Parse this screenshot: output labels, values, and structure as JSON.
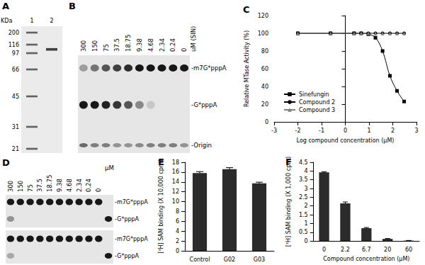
{
  "chart_data": [
    {
      "type": "line",
      "title": "C",
      "x_label": "Log compound concentration (μM)",
      "y_label": "Relative MTase Activity (%)",
      "x": [
        -2,
        -0.62,
        0.37,
        0.67,
        0.97,
        1.27,
        1.57,
        1.88,
        2.18,
        2.48
      ],
      "series": [
        {
          "name": "Sinefungin",
          "color": "#000000",
          "marker": "square",
          "line_style": "solid",
          "values": [
            100,
            100,
            100,
            100,
            99,
            95,
            80,
            52,
            35,
            23
          ]
        },
        {
          "name": "Compound 2",
          "color": "#000000",
          "marker": "circle",
          "line_style": "solid",
          "values": [
            100,
            100,
            100,
            100,
            100,
            100,
            100,
            100,
            100,
            100
          ]
        },
        {
          "name": "Compound 3",
          "color": "#7f7f7f",
          "marker": "triangle",
          "line_style": "solid",
          "values": [
            100,
            100,
            100,
            100,
            100,
            100,
            100,
            100,
            100,
            100
          ]
        }
      ],
      "xlim": [
        -3,
        3
      ],
      "xticks": [
        -3,
        -2,
        -1,
        0,
        1,
        2,
        3
      ],
      "ylim": [
        0,
        120
      ],
      "yticks": [
        0,
        20,
        40,
        60,
        80,
        100,
        120
      ],
      "grid": false,
      "legend": "lower left"
    },
    {
      "type": "bar",
      "title": "E",
      "y_label": "[³H] SAM binding (X 10,000 cpm)",
      "categories": [
        "Control",
        "G02",
        "G03"
      ],
      "values": [
        15.8,
        16.6,
        13.7
      ],
      "errors": [
        0.3,
        0.3,
        0.25
      ],
      "color": "#2b2b2b",
      "ylim": [
        0,
        18
      ],
      "yticks": [
        0,
        2,
        4,
        6,
        8,
        10,
        12,
        14,
        16,
        18
      ],
      "grid": false
    },
    {
      "type": "bar",
      "title": "F",
      "x_label": "Compound concentration (μM)",
      "y_label": "[³H] SAM binding (X 1,000 cpm)",
      "categories": [
        "0",
        "2.2",
        "6.7",
        "20",
        "60"
      ],
      "values": [
        3.92,
        2.15,
        0.73,
        0.12,
        0.02
      ],
      "errors": [
        0.04,
        0.08,
        0.04,
        0.02,
        0.01
      ],
      "color": "#2b2b2b",
      "ylim": [
        0,
        4.5
      ],
      "yticks": [
        0,
        0.5,
        1,
        1.5,
        2,
        2.5,
        3,
        3.5,
        4,
        4.5
      ],
      "grid": false
    }
  ],
  "gels": [
    {
      "title": "A",
      "unit": "KDa",
      "ladder": [
        "200",
        "116",
        "97",
        "66",
        "45",
        "31",
        "21"
      ],
      "lanes": [
        "1",
        "2"
      ],
      "sample_band_kda": 105
    },
    {
      "title": "B",
      "unit": "uM (SIN)",
      "lanes": [
        "300",
        "150",
        "75",
        "37.5",
        "18.75",
        "9.38",
        "4.68",
        "2.34",
        "0.24",
        "0"
      ],
      "plates": [
        {
          "bands": [
            {
              "label": "-m7G*pppA",
              "intensity": [
                0.35,
                0.55,
                0.7,
                0.8,
                0.9,
                1,
                1,
                1,
                1,
                1
              ]
            },
            {
              "label": "-G*pppA",
              "intensity": [
                1,
                1,
                0.95,
                0.85,
                0.7,
                0.45,
                0.15,
                0,
                0,
                0
              ]
            },
            {
              "label": "-Origin",
              "intensity": [
                0.6,
                0.5,
                0.5,
                0.4,
                0.4,
                0.45,
                0.5,
                0.5,
                0.5,
                0.4
              ]
            }
          ]
        }
      ]
    },
    {
      "title": "D",
      "unit": "μM",
      "lanes": [
        "300",
        "150",
        "75",
        "37.5",
        "18.75",
        "9.38",
        "4.68",
        "2.34",
        "0.24",
        "0",
        null
      ],
      "plates": [
        {
          "bands": [
            {
              "label": "-m7G*pppA",
              "intensity": [
                1,
                1,
                1,
                1,
                1,
                1,
                1,
                1,
                1,
                1,
                0
              ]
            },
            {
              "label": "-G*pppA",
              "intensity": [
                0.4,
                0,
                0,
                0,
                0,
                0,
                0,
                0,
                0,
                0,
                1
              ]
            }
          ]
        },
        {
          "bands": [
            {
              "label": "-m7G*pppA",
              "intensity": [
                1,
                1,
                1,
                1,
                1,
                1,
                1,
                1,
                1,
                1,
                0
              ]
            },
            {
              "label": "-G*pppA",
              "intensity": [
                0.3,
                0,
                0,
                0,
                0,
                0,
                0,
                0,
                0,
                0,
                1
              ]
            }
          ]
        }
      ]
    }
  ]
}
